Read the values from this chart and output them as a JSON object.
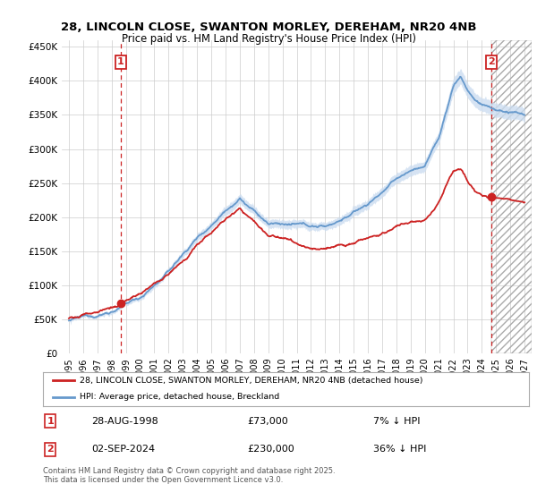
{
  "title_line1": "28, LINCOLN CLOSE, SWANTON MORLEY, DEREHAM, NR20 4NB",
  "title_line2": "Price paid vs. HM Land Registry's House Price Index (HPI)",
  "background_color": "#ffffff",
  "plot_bg_color": "#ffffff",
  "grid_color": "#cccccc",
  "hpi_color": "#6699cc",
  "hpi_fill_color": "#ccddf0",
  "price_color": "#cc2222",
  "sale1_date_num": 1998.65,
  "sale1_price": 73000,
  "sale2_date_num": 2024.67,
  "sale2_price": 230000,
  "xlim": [
    1994.5,
    2027.5
  ],
  "ylim": [
    0,
    460000
  ],
  "yticks": [
    0,
    50000,
    100000,
    150000,
    200000,
    250000,
    300000,
    350000,
    400000,
    450000
  ],
  "ytick_labels": [
    "£0",
    "£50K",
    "£100K",
    "£150K",
    "£200K",
    "£250K",
    "£300K",
    "£350K",
    "£400K",
    "£450K"
  ],
  "xticks": [
    1995,
    1996,
    1997,
    1998,
    1999,
    2000,
    2001,
    2002,
    2003,
    2004,
    2005,
    2006,
    2007,
    2008,
    2009,
    2010,
    2011,
    2012,
    2013,
    2014,
    2015,
    2016,
    2017,
    2018,
    2019,
    2020,
    2021,
    2022,
    2023,
    2024,
    2025,
    2026,
    2027
  ],
  "legend_entry1": "28, LINCOLN CLOSE, SWANTON MORLEY, DEREHAM, NR20 4NB (detached house)",
  "legend_entry2": "HPI: Average price, detached house, Breckland",
  "annotation1_date": "28-AUG-1998",
  "annotation1_price": "£73,000",
  "annotation1_hpi": "7% ↓ HPI",
  "annotation2_date": "02-SEP-2024",
  "annotation2_price": "£230,000",
  "annotation2_hpi": "36% ↓ HPI",
  "copyright_text": "Contains HM Land Registry data © Crown copyright and database right 2025.\nThis data is licensed under the Open Government Licence v3.0."
}
